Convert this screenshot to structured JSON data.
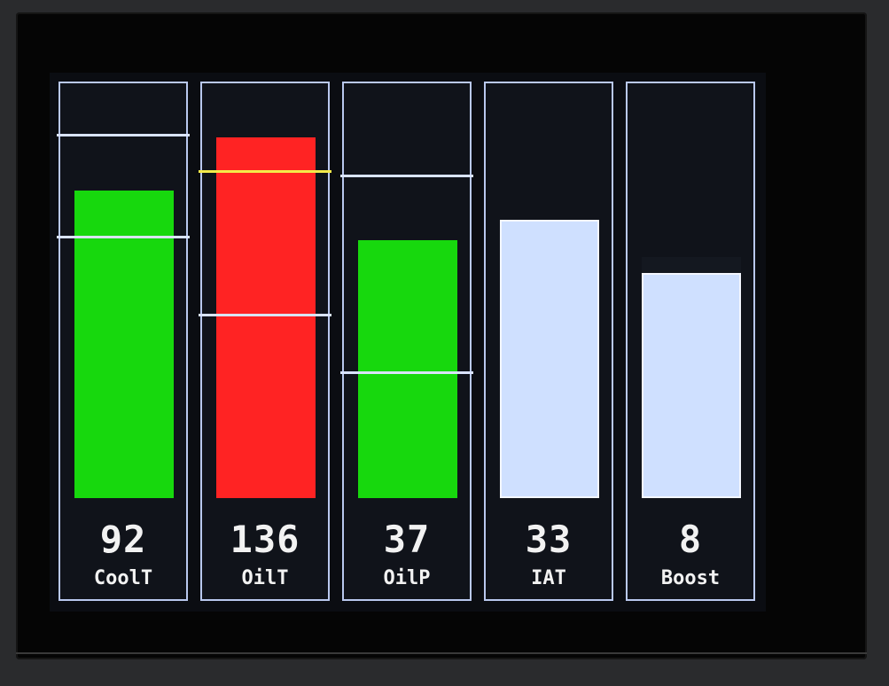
{
  "gauges": [
    {
      "label": "CoolT",
      "value": "92",
      "level": 0.75,
      "fill": "#17d80d",
      "markers": [
        {
          "level": 0.89,
          "color": "#d9e3ff"
        },
        {
          "level": 0.64,
          "color": "#d9e3ff"
        }
      ]
    },
    {
      "label": "OilT",
      "value": "136",
      "level": 0.88,
      "fill": "#ff2323",
      "markers": [
        {
          "level": 0.8,
          "color": "#f4ea4a"
        },
        {
          "level": 0.45,
          "color": "#d9e3ff"
        }
      ]
    },
    {
      "label": "OilP",
      "value": "37",
      "level": 0.63,
      "fill": "#17d80d",
      "markers": [
        {
          "level": 0.79,
          "color": "#d9e3ff"
        },
        {
          "level": 0.31,
          "color": "#d9e3ff"
        }
      ]
    },
    {
      "label": "IAT",
      "value": "33",
      "level": 0.68,
      "fill": "#cfe0ff",
      "markers": []
    },
    {
      "label": "Boost",
      "value": "8",
      "level": 0.55,
      "fill": "#cfe0ff",
      "markers": []
    }
  ],
  "colors": {
    "border": "#b9c8ee",
    "background": "#0b0d12",
    "text": "#f2f2f2"
  }
}
